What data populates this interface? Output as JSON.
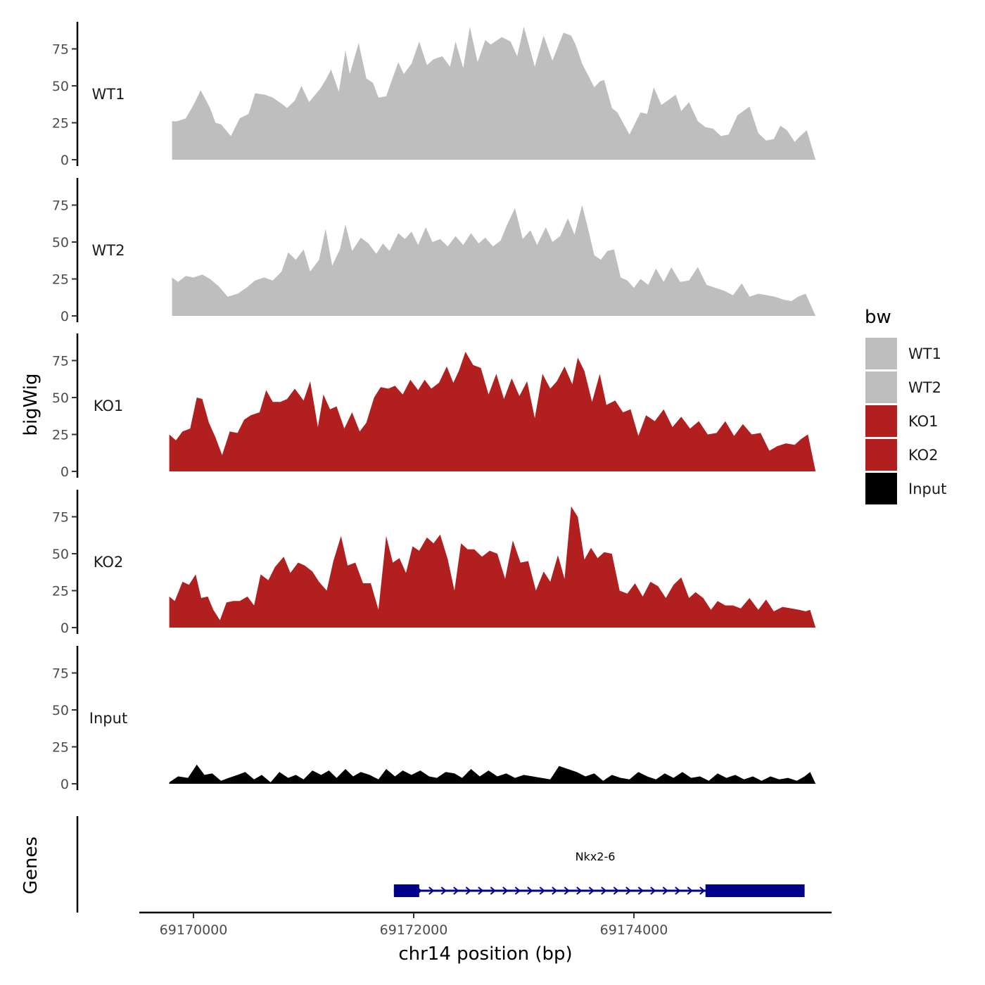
{
  "chart_data": {
    "type": "area",
    "y_axis_title": "bigWig",
    "x_axis_title": "chr14 position (bp)",
    "genes_track_title": "Genes",
    "x_ticks": [
      69170000,
      69172000,
      69174000
    ],
    "x_tick_labels": [
      "69170000",
      "69172000",
      "69174000"
    ],
    "y_ticks": [
      0,
      25,
      50,
      75
    ],
    "y_tick_labels": [
      "0",
      "25",
      "50",
      "75"
    ],
    "ylim": [
      0,
      93
    ],
    "xlim": [
      69169500,
      69175800
    ],
    "legend": {
      "title": "bw",
      "placement": "right",
      "entries": [
        {
          "label": "WT1",
          "color": "#bebebe"
        },
        {
          "label": "WT2",
          "color": "#bebebe"
        },
        {
          "label": "KO1",
          "color": "#b21f1f"
        },
        {
          "label": "KO2",
          "color": "#b21f1f"
        },
        {
          "label": "Input",
          "color": "#000000"
        }
      ]
    },
    "tracks": [
      {
        "name": "WT1",
        "color": "#bebebe",
        "x": [
          69169805,
          69169850,
          69169930,
          69170000,
          69170065,
          69170150,
          69170200,
          69170250,
          69170340,
          69170420,
          69170500,
          69170560,
          69170650,
          69170720,
          69170800,
          69170850,
          69170920,
          69170980,
          69171050,
          69171150,
          69171200,
          69171250,
          69171320,
          69171380,
          69171420,
          69171500,
          69171570,
          69171630,
          69171680,
          69171750,
          69171860,
          69171910,
          69171980,
          69172050,
          69172120,
          69172180,
          69172260,
          69172330,
          69172380,
          69172450,
          69172510,
          69172580,
          69172650,
          69172700,
          69172800,
          69172880,
          69172940,
          69173000,
          69173100,
          69173180,
          69173260,
          69173360,
          69173430,
          69173470,
          69173530,
          69173640,
          69173690,
          69173730,
          69173800,
          69173850,
          69173960,
          69174060,
          69174120,
          69174180,
          69174250,
          69174380,
          69174430,
          69174500,
          69174580,
          69174650,
          69174720,
          69174790,
          69174860,
          69174940,
          69175050,
          69175130,
          69175200,
          69175270,
          69175330,
          69175390,
          69175460,
          69175510,
          69175570,
          69175650
        ],
        "values": [
          26,
          26,
          28,
          37,
          47,
          35,
          25,
          24,
          16,
          28,
          31,
          45,
          44,
          42,
          38,
          35,
          40,
          50,
          39,
          48,
          54,
          61,
          46,
          74,
          58,
          79,
          55,
          52,
          42,
          43,
          66,
          58,
          65,
          80,
          64,
          68,
          70,
          63,
          80,
          62,
          90,
          66,
          81,
          78,
          83,
          80,
          70,
          90,
          63,
          84,
          67,
          86,
          84,
          78,
          65,
          49,
          53,
          54,
          35,
          32,
          17,
          32,
          31,
          49,
          37,
          44,
          33,
          39,
          26,
          22,
          21,
          16,
          17,
          30,
          36,
          18,
          13,
          14,
          23,
          20,
          12,
          16,
          20,
          0
        ]
      },
      {
        "name": "WT2",
        "color": "#bebebe",
        "x": [
          69169805,
          69169860,
          69169930,
          69170000,
          69170080,
          69170150,
          69170230,
          69170310,
          69170400,
          69170480,
          69170560,
          69170640,
          69170720,
          69170800,
          69170860,
          69170930,
          69171000,
          69171060,
          69171140,
          69171200,
          69171260,
          69171330,
          69171380,
          69171440,
          69171520,
          69171590,
          69171660,
          69171720,
          69171780,
          69171860,
          69171920,
          69171980,
          69172040,
          69172110,
          69172170,
          69172240,
          69172310,
          69172380,
          69172450,
          69172520,
          69172590,
          69172650,
          69172720,
          69172790,
          69172850,
          69172920,
          69172990,
          69173060,
          69173120,
          69173200,
          69173260,
          69173330,
          69173400,
          69173460,
          69173530,
          69173580,
          69173640,
          69173700,
          69173760,
          69173820,
          69173880,
          69173940,
          69174000,
          69174060,
          69174130,
          69174200,
          69174270,
          69174340,
          69174420,
          69174500,
          69174580,
          69174660,
          69174740,
          69174820,
          69174900,
          69174980,
          69175050,
          69175130,
          69175210,
          69175280,
          69175360,
          69175430,
          69175490,
          69175560,
          69175650
        ],
        "values": [
          26,
          23,
          27,
          26,
          28,
          25,
          20,
          13,
          15,
          19,
          24,
          26,
          24,
          30,
          43,
          38,
          45,
          30,
          38,
          59,
          34,
          45,
          62,
          44,
          53,
          49,
          42,
          49,
          44,
          56,
          52,
          57,
          48,
          60,
          50,
          52,
          47,
          54,
          48,
          56,
          49,
          53,
          47,
          51,
          62,
          73,
          52,
          58,
          48,
          60,
          50,
          54,
          66,
          55,
          75,
          60,
          41,
          38,
          44,
          45,
          26,
          24,
          19,
          25,
          21,
          32,
          23,
          33,
          23,
          24,
          33,
          21,
          19,
          17,
          14,
          22,
          13,
          15,
          14,
          13,
          11,
          10,
          13,
          15,
          0
        ]
      },
      {
        "name": "KO1",
        "color": "#b21f1f",
        "x": [
          69169780,
          69169840,
          69169900,
          69169970,
          69170030,
          69170080,
          69170140,
          69170200,
          69170260,
          69170330,
          69170400,
          69170460,
          69170520,
          69170600,
          69170660,
          69170720,
          69170790,
          69170850,
          69170920,
          69171000,
          69171060,
          69171130,
          69171180,
          69171240,
          69171300,
          69171370,
          69171440,
          69171510,
          69171570,
          69171640,
          69171700,
          69171770,
          69171830,
          69171900,
          69171970,
          69172040,
          69172100,
          69172160,
          69172230,
          69172300,
          69172360,
          69172410,
          69172470,
          69172540,
          69172610,
          69172680,
          69172750,
          69172820,
          69172890,
          69172960,
          69173030,
          69173100,
          69173170,
          69173240,
          69173300,
          69173370,
          69173440,
          69173490,
          69173550,
          69173620,
          69173690,
          69173750,
          69173830,
          69173900,
          69173970,
          69174040,
          69174110,
          69174190,
          69174270,
          69174350,
          69174430,
          69174510,
          69174590,
          69174670,
          69174750,
          69174830,
          69174910,
          69174990,
          69175070,
          69175150,
          69175230,
          69175300,
          69175380,
          69175460,
          69175520,
          69175580,
          69175650
        ],
        "values": [
          25,
          21,
          27,
          29,
          50,
          49,
          33,
          23,
          11,
          27,
          26,
          35,
          38,
          40,
          55,
          47,
          47,
          49,
          56,
          48,
          61,
          30,
          52,
          42,
          44,
          29,
          40,
          27,
          33,
          50,
          57,
          56,
          58,
          52,
          62,
          55,
          62,
          56,
          60,
          71,
          60,
          68,
          81,
          72,
          70,
          52,
          66,
          49,
          63,
          51,
          61,
          36,
          66,
          56,
          61,
          71,
          59,
          77,
          68,
          47,
          66,
          45,
          48,
          40,
          42,
          24,
          38,
          34,
          42,
          30,
          37,
          29,
          34,
          25,
          26,
          34,
          24,
          32,
          25,
          26,
          14,
          17,
          19,
          18,
          22,
          25,
          0
        ]
      },
      {
        "name": "KO2",
        "color": "#b21f1f",
        "x": [
          69169780,
          69169830,
          69169900,
          69169960,
          69170020,
          69170070,
          69170130,
          69170180,
          69170240,
          69170300,
          69170360,
          69170420,
          69170490,
          69170550,
          69170610,
          69170680,
          69170740,
          69170820,
          69170880,
          69170950,
          69171010,
          69171080,
          69171140,
          69171210,
          69171270,
          69171340,
          69171400,
          69171470,
          69171540,
          69171610,
          69171680,
          69171750,
          69171810,
          69171870,
          69171930,
          69171990,
          69172050,
          69172120,
          69172180,
          69172240,
          69172310,
          69172370,
          69172430,
          69172490,
          69172550,
          69172620,
          69172690,
          69172760,
          69172830,
          69172900,
          69172970,
          69173040,
          69173110,
          69173180,
          69173240,
          69173310,
          69173370,
          69173430,
          69173490,
          69173550,
          69173610,
          69173670,
          69173730,
          69173800,
          69173870,
          69173940,
          69174010,
          69174080,
          69174150,
          69174220,
          69174290,
          69174360,
          69174430,
          69174500,
          69174560,
          69174630,
          69174700,
          69174760,
          69174830,
          69174900,
          69174970,
          69175050,
          69175130,
          69175200,
          69175270,
          69175350,
          69175430,
          69175500,
          69175560,
          69175600,
          69175650
        ],
        "values": [
          21,
          18,
          31,
          29,
          36,
          20,
          21,
          12,
          5,
          17,
          18,
          18,
          21,
          15,
          36,
          32,
          41,
          48,
          37,
          44,
          42,
          38,
          31,
          25,
          45,
          62,
          42,
          44,
          30,
          30,
          12,
          62,
          44,
          47,
          37,
          55,
          52,
          61,
          57,
          63,
          46,
          25,
          57,
          53,
          53,
          48,
          52,
          50,
          33,
          59,
          44,
          45,
          25,
          38,
          31,
          49,
          33,
          82,
          75,
          46,
          54,
          47,
          51,
          50,
          25,
          23,
          30,
          21,
          31,
          28,
          20,
          29,
          34,
          20,
          24,
          20,
          12,
          18,
          15,
          15,
          13,
          20,
          12,
          19,
          11,
          14,
          13,
          12,
          11,
          12,
          0
        ]
      },
      {
        "name": "Input",
        "color": "#000000",
        "x": [
          69169780,
          69169860,
          69169950,
          69170030,
          69170100,
          69170170,
          69170250,
          69170320,
          69170400,
          69170470,
          69170550,
          69170620,
          69170700,
          69170780,
          69170860,
          69170930,
          69171000,
          69171080,
          69171160,
          69171230,
          69171300,
          69171380,
          69171450,
          69171520,
          69171600,
          69171680,
          69171750,
          69171830,
          69171900,
          69171980,
          69172060,
          69172140,
          69172210,
          69172290,
          69172370,
          69172440,
          69172520,
          69172600,
          69172680,
          69172760,
          69172840,
          69172920,
          69173000,
          69173080,
          69173160,
          69173240,
          69173320,
          69173400,
          69173480,
          69173560,
          69173640,
          69173720,
          69173800,
          69173880,
          69173960,
          69174040,
          69174120,
          69174200,
          69174280,
          69174360,
          69174440,
          69174520,
          69174600,
          69174680,
          69174760,
          69174840,
          69174920,
          69175000,
          69175080,
          69175160,
          69175240,
          69175320,
          69175400,
          69175480,
          69175550,
          69175600,
          69175650
        ],
        "values": [
          1,
          5,
          4,
          13,
          6,
          7,
          2,
          4,
          6,
          8,
          3,
          6,
          1,
          8,
          4,
          6,
          3,
          9,
          6,
          9,
          4,
          10,
          5,
          8,
          6,
          3,
          10,
          5,
          9,
          6,
          9,
          5,
          4,
          8,
          7,
          4,
          10,
          5,
          9,
          5,
          7,
          4,
          6,
          5,
          4,
          3,
          12,
          10,
          8,
          5,
          7,
          2,
          6,
          4,
          3,
          8,
          5,
          3,
          7,
          4,
          8,
          4,
          5,
          2,
          7,
          4,
          6,
          3,
          5,
          2,
          5,
          3,
          4,
          2,
          5,
          8,
          0
        ]
      }
    ],
    "genes": [
      {
        "name": "Nkx2-6",
        "strand": "+",
        "start": 69171820,
        "end": 69175550,
        "exons": [
          [
            69171820,
            69172050
          ],
          [
            69174650,
            69175550
          ]
        ],
        "color": "#00008b"
      }
    ]
  }
}
